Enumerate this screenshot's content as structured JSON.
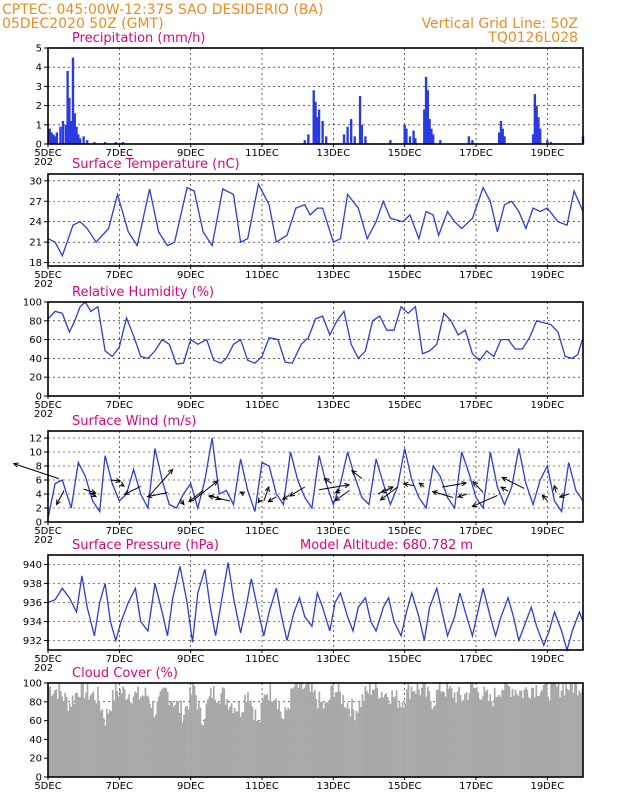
{
  "header": {
    "line1": "CPTEC:   045:00W-12:37S  SAO DESIDERIO (BA)",
    "line2_left": "05DEC2020 50Z (GMT)",
    "line2_right": "Vertical Grid Line: 50Z",
    "line3_right": "TQ0126L028"
  },
  "colors": {
    "header": "#f08a24",
    "title": "#e8007a",
    "series": "#2b3be0",
    "cloud": "#a8a8a8"
  },
  "x_axis": {
    "range_days": [
      5,
      20
    ],
    "tick_days": [
      5,
      7,
      9,
      11,
      13,
      15,
      17,
      19
    ],
    "tick_labels": [
      "5DEC",
      "7DEC",
      "9DEC",
      "11DEC",
      "13DEC",
      "15DEC",
      "17DEC",
      "19DEC"
    ],
    "year_stub": "202"
  },
  "chart_data": [
    {
      "id": "precip",
      "type": "bar",
      "title": "Precipitation (mm/h)",
      "ylim": [
        0,
        5
      ],
      "yticks": [
        0,
        1,
        2,
        3,
        4,
        5
      ],
      "x_days": [
        5.05,
        5.1,
        5.15,
        5.2,
        5.25,
        5.35,
        5.42,
        5.5,
        5.55,
        5.6,
        5.65,
        5.7,
        5.75,
        5.8,
        5.85,
        5.9,
        6.0,
        6.1,
        6.3,
        6.6,
        6.9,
        7.1,
        12.2,
        12.3,
        12.45,
        12.5,
        12.55,
        12.6,
        12.7,
        12.8,
        13.3,
        13.4,
        13.5,
        13.6,
        13.75,
        13.8,
        13.9,
        14.6,
        15.0,
        15.05,
        15.15,
        15.25,
        15.3,
        15.55,
        15.6,
        15.65,
        15.7,
        15.75,
        15.8,
        16.0,
        16.8,
        16.9,
        17.65,
        17.7,
        17.75,
        17.8,
        18.6,
        18.65,
        18.7,
        18.75,
        18.8,
        19.0,
        19.1,
        20.0
      ],
      "values": [
        0.8,
        0.6,
        0.5,
        0.4,
        0.6,
        0.9,
        1.2,
        1.0,
        3.8,
        2.4,
        1.2,
        4.5,
        1.6,
        0.9,
        0.5,
        0.3,
        0.4,
        0.2,
        0.1,
        0.1,
        0.1,
        0.1,
        0.2,
        0.5,
        2.8,
        2.2,
        1.4,
        1.8,
        1.2,
        0.4,
        0.5,
        0.9,
        1.3,
        0.4,
        2.5,
        1.0,
        0.4,
        0.2,
        1.0,
        0.8,
        0.4,
        0.7,
        0.3,
        1.8,
        3.5,
        2.8,
        1.3,
        0.8,
        0.5,
        0.2,
        0.4,
        0.2,
        0.6,
        1.2,
        0.8,
        0.4,
        0.5,
        2.6,
        2.0,
        1.4,
        0.8,
        0.2,
        0.1,
        0.4
      ]
    },
    {
      "id": "temp",
      "type": "line",
      "title": "Surface Temperature (nC)",
      "ylim": [
        17.5,
        31
      ],
      "yticks": [
        18,
        21,
        24,
        27,
        30
      ],
      "x_days": [
        5.0,
        5.2,
        5.4,
        5.7,
        5.9,
        6.1,
        6.35,
        6.7,
        6.95,
        7.25,
        7.5,
        7.85,
        8.1,
        8.35,
        8.55,
        8.9,
        9.1,
        9.35,
        9.6,
        9.9,
        10.2,
        10.4,
        10.6,
        10.9,
        11.2,
        11.4,
        11.7,
        11.95,
        12.2,
        12.35,
        12.55,
        12.7,
        13.0,
        13.2,
        13.4,
        13.55,
        13.7,
        13.95,
        14.2,
        14.4,
        14.6,
        14.95,
        15.15,
        15.4,
        15.6,
        15.8,
        15.95,
        16.2,
        16.4,
        16.6,
        16.9,
        17.2,
        17.4,
        17.6,
        17.8,
        18.0,
        18.2,
        18.4,
        18.6,
        18.8,
        19.0,
        19.3,
        19.55,
        19.75,
        20.0
      ],
      "values": [
        21.5,
        21.0,
        19.0,
        23.5,
        24.0,
        23.0,
        21.0,
        23.0,
        28.0,
        22.5,
        20.5,
        28.8,
        22.5,
        20.5,
        21.0,
        29.0,
        28.5,
        22.5,
        20.5,
        28.8,
        28.0,
        21.0,
        21.5,
        29.5,
        26.5,
        21.0,
        22.0,
        26.0,
        26.5,
        25.0,
        26.0,
        26.0,
        21.0,
        21.5,
        28.0,
        27.0,
        26.0,
        21.5,
        24.0,
        27.0,
        24.5,
        24.0,
        25.0,
        21.5,
        25.5,
        25.0,
        22.0,
        25.5,
        24.0,
        23.0,
        24.5,
        29.0,
        27.0,
        22.5,
        26.5,
        27.0,
        25.5,
        23.0,
        26.0,
        25.5,
        26.0,
        24.0,
        23.5,
        28.5,
        25.5
      ]
    },
    {
      "id": "rh",
      "type": "line",
      "title": "Relative Humidity (%)",
      "ylim": [
        0,
        100
      ],
      "yticks": [
        0,
        20,
        40,
        60,
        80,
        100
      ],
      "x_days": [
        5.0,
        5.2,
        5.4,
        5.6,
        5.75,
        5.9,
        6.05,
        6.2,
        6.4,
        6.6,
        6.8,
        7.0,
        7.2,
        7.4,
        7.6,
        7.8,
        8.0,
        8.2,
        8.4,
        8.6,
        8.8,
        9.0,
        9.2,
        9.45,
        9.65,
        9.85,
        10.0,
        10.2,
        10.4,
        10.6,
        10.8,
        11.0,
        11.2,
        11.45,
        11.65,
        11.85,
        12.1,
        12.3,
        12.5,
        12.7,
        12.9,
        13.1,
        13.3,
        13.5,
        13.7,
        13.9,
        14.1,
        14.3,
        14.5,
        14.7,
        14.9,
        15.1,
        15.3,
        15.5,
        15.7,
        15.9,
        16.1,
        16.3,
        16.5,
        16.7,
        16.9,
        17.1,
        17.3,
        17.5,
        17.7,
        17.9,
        18.1,
        18.3,
        18.5,
        18.7,
        18.9,
        19.1,
        19.3,
        19.5,
        19.7,
        19.85,
        20.0
      ],
      "values": [
        82,
        90,
        88,
        68,
        80,
        95,
        100,
        90,
        95,
        48,
        42,
        52,
        83,
        64,
        42,
        40,
        48,
        60,
        55,
        34,
        35,
        60,
        55,
        60,
        38,
        35,
        40,
        55,
        60,
        38,
        35,
        42,
        62,
        60,
        36,
        35,
        55,
        62,
        82,
        85,
        65,
        80,
        90,
        55,
        40,
        48,
        80,
        85,
        70,
        70,
        95,
        88,
        95,
        45,
        48,
        55,
        88,
        80,
        65,
        70,
        45,
        38,
        48,
        42,
        60,
        60,
        50,
        50,
        62,
        80,
        78,
        76,
        68,
        42,
        40,
        44,
        62
      ]
    },
    {
      "id": "wind",
      "type": "line",
      "title": "Surface Wind (m/s)",
      "ylim": [
        0,
        13
      ],
      "yticks": [
        0,
        2,
        4,
        6,
        8,
        10,
        12
      ],
      "x_days": [
        5.0,
        5.2,
        5.4,
        5.65,
        5.85,
        6.05,
        6.25,
        6.45,
        6.6,
        6.8,
        7.0,
        7.2,
        7.4,
        7.6,
        7.8,
        8.0,
        8.2,
        8.4,
        8.6,
        8.8,
        9.0,
        9.2,
        9.4,
        9.6,
        9.8,
        10.0,
        10.2,
        10.4,
        10.6,
        10.8,
        11.0,
        11.2,
        11.4,
        11.6,
        11.8,
        12.0,
        12.2,
        12.4,
        12.6,
        12.8,
        13.0,
        13.2,
        13.4,
        13.6,
        13.8,
        14.0,
        14.2,
        14.4,
        14.6,
        14.8,
        15.0,
        15.2,
        15.4,
        15.6,
        15.8,
        16.0,
        16.2,
        16.4,
        16.6,
        16.8,
        17.0,
        17.2,
        17.4,
        17.6,
        17.8,
        18.0,
        18.2,
        18.4,
        18.6,
        18.8,
        19.0,
        19.2,
        19.4,
        19.6,
        19.8,
        20.0
      ],
      "values": [
        0.5,
        5.5,
        6.0,
        2.0,
        8.5,
        6.5,
        3.0,
        1.5,
        9.5,
        5.5,
        3.0,
        4.0,
        7.5,
        4.0,
        2.0,
        10.5,
        6.0,
        2.5,
        2.0,
        4.0,
        5.5,
        2.0,
        6.0,
        12.0,
        4.0,
        4.5,
        2.5,
        9.0,
        4.5,
        1.5,
        8.5,
        8.0,
        4.0,
        2.5,
        10.0,
        6.0,
        3.5,
        2.0,
        9.5,
        5.5,
        2.5,
        5.5,
        10.0,
        6.5,
        3.5,
        2.5,
        9.0,
        5.5,
        2.5,
        5.0,
        10.5,
        6.0,
        3.5,
        2.0,
        8.0,
        6.5,
        3.5,
        2.0,
        10.0,
        7.0,
        3.5,
        2.0,
        10.0,
        5.0,
        2.5,
        5.0,
        10.5,
        5.5,
        2.5,
        6.0,
        8.0,
        3.0,
        1.5,
        8.5,
        4.5,
        3.0
      ],
      "vectors": [
        [
          5.3,
          6.2,
          -90,
          -30
        ],
        [
          5.45,
          4.5,
          -15,
          28
        ],
        [
          6.0,
          4.7,
          24,
          8
        ],
        [
          6.15,
          4.2,
          14,
          8
        ],
        [
          6.75,
          6.0,
          20,
          2
        ],
        [
          7.05,
          5.4,
          6,
          4
        ],
        [
          7.6,
          5.1,
          -32,
          16
        ],
        [
          7.85,
          3.8,
          46,
          -52
        ],
        [
          8.35,
          4.2,
          -40,
          8
        ],
        [
          8.7,
          3.2,
          8,
          10
        ],
        [
          9.05,
          3.0,
          50,
          -40
        ],
        [
          9.35,
          4.5,
          -28,
          22
        ],
        [
          9.55,
          3.8,
          20,
          8
        ],
        [
          10.1,
          3.0,
          -42,
          -10
        ],
        [
          10.5,
          4.0,
          -8,
          -4
        ],
        [
          10.95,
          3.2,
          -4,
          6
        ],
        [
          11.05,
          3.0,
          10,
          -28
        ],
        [
          11.4,
          3.6,
          -16,
          10
        ],
        [
          11.75,
          3.8,
          -12,
          8
        ],
        [
          12.2,
          5.0,
          -30,
          18
        ],
        [
          12.6,
          4.6,
          60,
          -10
        ],
        [
          12.95,
          5.5,
          -14,
          -10
        ],
        [
          13.2,
          4.6,
          -10,
          6
        ],
        [
          13.45,
          4.5,
          -28,
          20
        ],
        [
          13.8,
          6.2,
          -20,
          -16
        ],
        [
          14.25,
          4.0,
          30,
          -14
        ],
        [
          14.55,
          4.6,
          -14,
          4
        ],
        [
          14.8,
          5.0,
          -34,
          26
        ],
        [
          15.25,
          5.2,
          -20,
          -4
        ],
        [
          15.55,
          5.0,
          -10,
          -8
        ],
        [
          16.05,
          5.0,
          48,
          -8
        ],
        [
          16.35,
          3.5,
          -40,
          -12
        ],
        [
          16.75,
          4.0,
          -18,
          6
        ],
        [
          17.2,
          4.2,
          -20,
          -22
        ],
        [
          17.6,
          3.8,
          -50,
          22
        ],
        [
          17.9,
          4.4,
          -14,
          -8
        ],
        [
          18.35,
          4.8,
          -44,
          -22
        ],
        [
          19.0,
          3.0,
          -10,
          -12
        ],
        [
          19.25,
          4.2,
          -4,
          -14
        ],
        [
          19.6,
          4.0,
          -18,
          6
        ]
      ]
    },
    {
      "id": "press",
      "type": "line",
      "title": "Surface Pressure (hPa)",
      "subtitle": "Model Altitude: 680.782 m",
      "ylim": [
        931,
        941
      ],
      "yticks": [
        932,
        934,
        936,
        938,
        940
      ],
      "x_days": [
        5.0,
        5.2,
        5.4,
        5.6,
        5.8,
        5.95,
        6.1,
        6.3,
        6.45,
        6.6,
        6.75,
        6.9,
        7.05,
        7.25,
        7.45,
        7.6,
        7.8,
        8.0,
        8.2,
        8.35,
        8.5,
        8.7,
        8.9,
        9.05,
        9.2,
        9.4,
        9.55,
        9.7,
        9.9,
        10.05,
        10.2,
        10.4,
        10.55,
        10.7,
        10.9,
        11.05,
        11.2,
        11.4,
        11.55,
        11.7,
        11.9,
        12.05,
        12.2,
        12.4,
        12.55,
        12.7,
        12.9,
        13.05,
        13.2,
        13.4,
        13.55,
        13.7,
        13.9,
        14.05,
        14.2,
        14.4,
        14.55,
        14.7,
        14.9,
        15.05,
        15.2,
        15.4,
        15.55,
        15.7,
        15.9,
        16.05,
        16.2,
        16.4,
        16.55,
        16.7,
        16.9,
        17.05,
        17.2,
        17.4,
        17.55,
        17.7,
        17.9,
        18.05,
        18.2,
        18.4,
        18.55,
        18.7,
        18.9,
        19.05,
        19.2,
        19.4,
        19.55,
        19.7,
        19.9,
        20.0
      ],
      "values": [
        936.0,
        936.3,
        937.5,
        936.5,
        935.0,
        938.8,
        935.5,
        932.5,
        936.0,
        938.0,
        934.0,
        932.0,
        934.0,
        936.0,
        937.5,
        934.0,
        933.0,
        938.0,
        935.0,
        932.5,
        936.5,
        939.8,
        936.0,
        931.8,
        937.0,
        939.5,
        935.5,
        932.5,
        937.0,
        940.2,
        936.5,
        932.8,
        935.5,
        938.5,
        935.0,
        932.5,
        935.0,
        937.5,
        934.5,
        932.0,
        935.0,
        936.5,
        934.5,
        933.5,
        937.0,
        935.5,
        933.0,
        936.0,
        937.0,
        934.5,
        933.0,
        935.5,
        936.5,
        934.0,
        933.0,
        935.5,
        936.5,
        934.0,
        932.5,
        935.0,
        937.0,
        934.5,
        932.0,
        935.5,
        937.5,
        935.0,
        932.5,
        934.5,
        937.0,
        935.0,
        932.5,
        935.0,
        937.5,
        934.5,
        932.5,
        934.5,
        936.5,
        934.5,
        932.0,
        934.0,
        935.5,
        933.5,
        931.5,
        933.0,
        935.0,
        933.0,
        931.0,
        933.0,
        935.0,
        934.0
      ]
    },
    {
      "id": "cloud",
      "type": "bar",
      "title": "Cloud Cover (%)",
      "ylim": [
        0,
        100
      ],
      "yticks": [
        0,
        20,
        40,
        60,
        80,
        100
      ],
      "profile_days": [
        5.0,
        5.3,
        5.6,
        5.9,
        6.1,
        6.4,
        6.6,
        6.9,
        7.2,
        7.5,
        7.8,
        8.0,
        8.3,
        8.5,
        8.8,
        9.1,
        9.3,
        9.6,
        9.9,
        10.1,
        10.4,
        10.6,
        10.9,
        11.1,
        11.4,
        11.6,
        11.9,
        12.2,
        12.5,
        12.8,
        13.0,
        13.3,
        13.6,
        13.9,
        14.1,
        14.4,
        14.6,
        14.9,
        15.2,
        15.5,
        15.8,
        16.0,
        16.3,
        16.6,
        16.9,
        17.1,
        17.4,
        17.7,
        18.0,
        18.3,
        18.6,
        18.9,
        19.1,
        19.4,
        19.7,
        20.0
      ],
      "profile_values": [
        96,
        92,
        78,
        95,
        90,
        85,
        62,
        92,
        90,
        86,
        88,
        70,
        92,
        82,
        68,
        96,
        60,
        90,
        88,
        80,
        72,
        93,
        55,
        92,
        88,
        60,
        96,
        95,
        85,
        72,
        96,
        82,
        70,
        88,
        96,
        90,
        88,
        80,
        96,
        92,
        80,
        96,
        90,
        84,
        95,
        92,
        80,
        96,
        95,
        90,
        96,
        94,
        92,
        96,
        97,
        98
      ]
    }
  ]
}
